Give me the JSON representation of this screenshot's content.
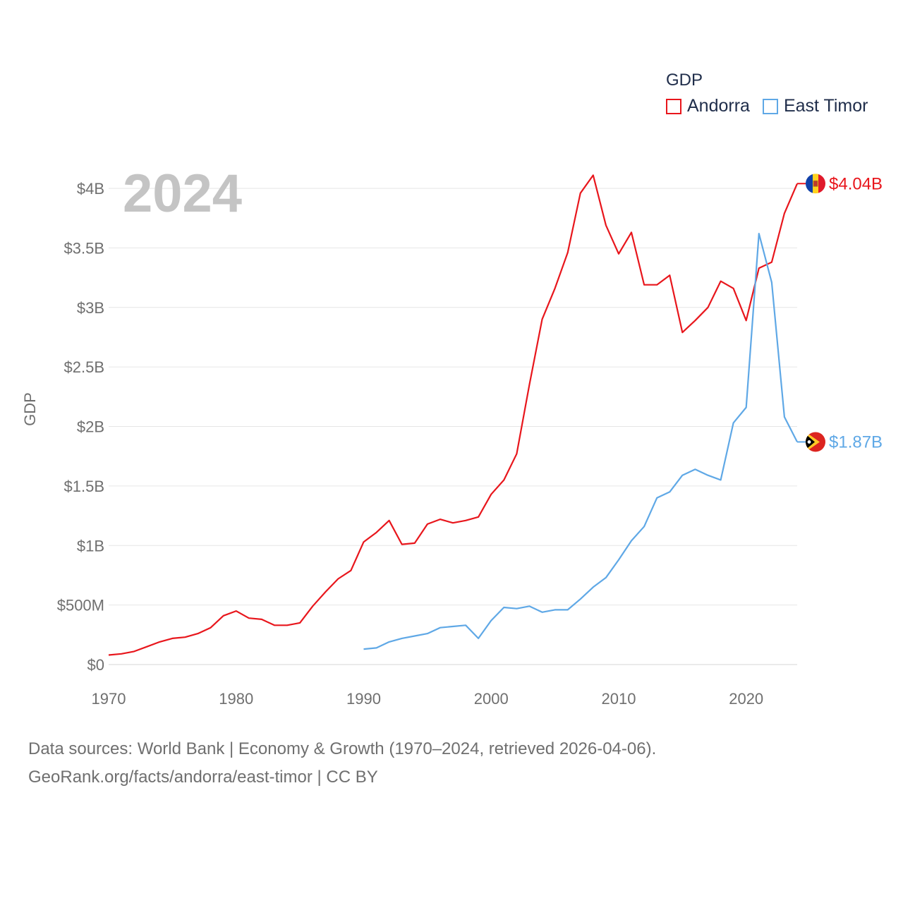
{
  "legend": {
    "title": "GDP",
    "items": [
      {
        "name": "Andorra",
        "color": "#e8161c"
      },
      {
        "name": "East Timor",
        "color": "#5fa8e6"
      }
    ]
  },
  "footer": {
    "line1": "Data sources: World Bank | Economy & Growth (1970–2024, retrieved 2026-04-06).",
    "line2": "GeoRank.org/facts/andorra/east-timor | CC BY"
  },
  "chart_data": {
    "type": "line",
    "title": "GDP",
    "year_label": "2024",
    "ylabel": "GDP",
    "xlabel": "",
    "xlim": [
      1970,
      2024
    ],
    "ylim": [
      0,
      4.1
    ],
    "x_ticks": [
      1970,
      1980,
      1990,
      2000,
      2010,
      2020
    ],
    "y_ticks": [
      {
        "value": 0,
        "label": "$0"
      },
      {
        "value": 0.5,
        "label": "$500M"
      },
      {
        "value": 1,
        "label": "$1B"
      },
      {
        "value": 1.5,
        "label": "$1.5B"
      },
      {
        "value": 2,
        "label": "$2B"
      },
      {
        "value": 2.5,
        "label": "$2.5B"
      },
      {
        "value": 3,
        "label": "$3B"
      },
      {
        "value": 3.5,
        "label": "$3.5B"
      },
      {
        "value": 4,
        "label": "$4B"
      }
    ],
    "grid": true,
    "series": [
      {
        "name": "Andorra",
        "color": "#e8161c",
        "end_label": "$4.04B",
        "flag": "andorra-flag",
        "x": [
          1970,
          1971,
          1972,
          1973,
          1974,
          1975,
          1976,
          1977,
          1978,
          1979,
          1980,
          1981,
          1982,
          1983,
          1984,
          1985,
          1986,
          1987,
          1988,
          1989,
          1990,
          1991,
          1992,
          1993,
          1994,
          1995,
          1996,
          1997,
          1998,
          1999,
          2000,
          2001,
          2002,
          2003,
          2004,
          2005,
          2006,
          2007,
          2008,
          2009,
          2010,
          2011,
          2012,
          2013,
          2014,
          2015,
          2016,
          2017,
          2018,
          2019,
          2020,
          2021,
          2022,
          2023,
          2024
        ],
        "values": [
          0.08,
          0.09,
          0.11,
          0.15,
          0.19,
          0.22,
          0.23,
          0.26,
          0.31,
          0.41,
          0.45,
          0.39,
          0.38,
          0.33,
          0.33,
          0.35,
          0.49,
          0.61,
          0.72,
          0.79,
          1.03,
          1.11,
          1.21,
          1.01,
          1.02,
          1.18,
          1.22,
          1.19,
          1.21,
          1.24,
          1.43,
          1.55,
          1.77,
          2.35,
          2.9,
          3.16,
          3.46,
          3.96,
          4.11,
          3.69,
          3.45,
          3.63,
          3.19,
          3.19,
          3.27,
          2.79,
          2.89,
          3.0,
          3.22,
          3.16,
          2.89,
          3.33,
          3.38,
          3.79,
          4.04
        ]
      },
      {
        "name": "East Timor",
        "color": "#5fa8e6",
        "end_label": "$1.87B",
        "flag": "east-timor-flag",
        "x": [
          1990,
          1991,
          1992,
          1993,
          1994,
          1995,
          1996,
          1997,
          1998,
          1999,
          2000,
          2001,
          2002,
          2003,
          2004,
          2005,
          2006,
          2007,
          2008,
          2009,
          2010,
          2011,
          2012,
          2013,
          2014,
          2015,
          2016,
          2017,
          2018,
          2019,
          2020,
          2021,
          2022,
          2023,
          2024
        ],
        "values": [
          0.13,
          0.14,
          0.19,
          0.22,
          0.24,
          0.26,
          0.31,
          0.32,
          0.33,
          0.22,
          0.37,
          0.48,
          0.47,
          0.49,
          0.44,
          0.46,
          0.46,
          0.55,
          0.65,
          0.73,
          0.88,
          1.04,
          1.16,
          1.4,
          1.45,
          1.59,
          1.64,
          1.59,
          1.55,
          2.03,
          2.16,
          3.62,
          3.21,
          2.08,
          1.87
        ]
      }
    ]
  }
}
